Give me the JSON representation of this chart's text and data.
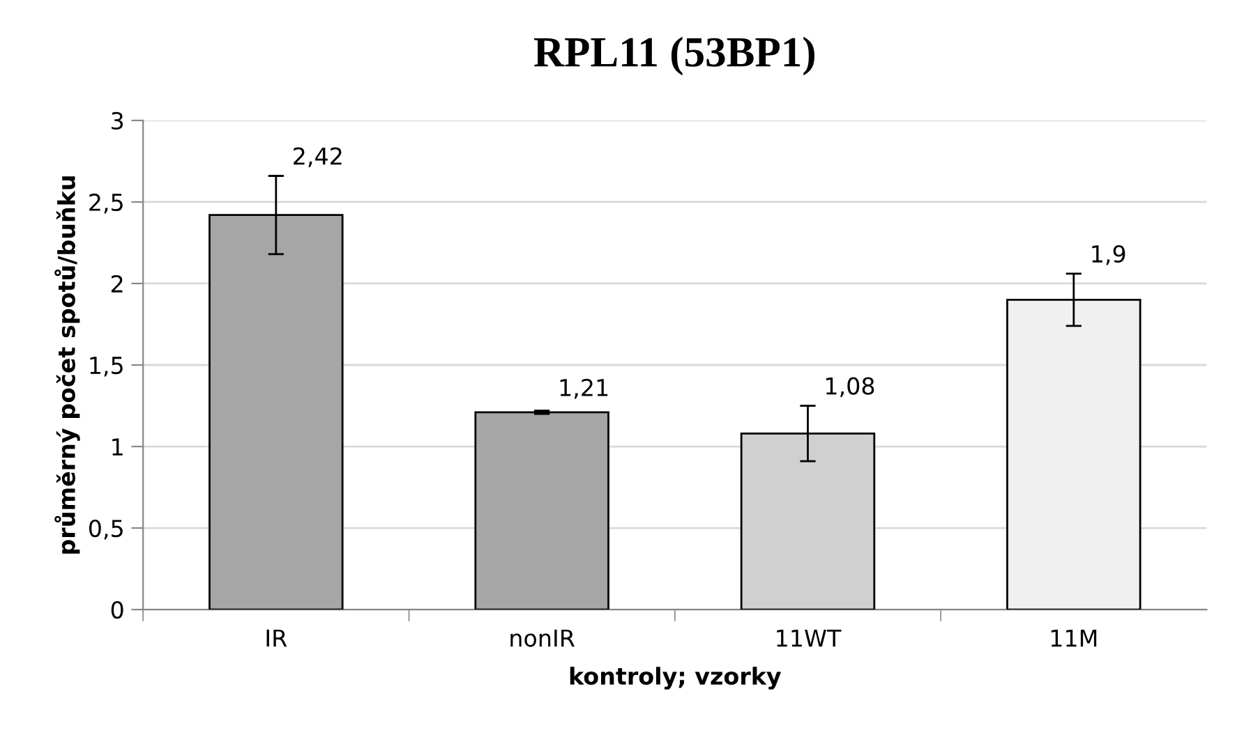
{
  "chart_data": {
    "type": "bar",
    "title": "RPL11 (53BP1)",
    "xlabel": "kontroly; vzorky",
    "ylabel": "průměrný počet spotů/buňku",
    "categories": [
      "IR",
      "nonIR",
      "11WT",
      "11M"
    ],
    "values": [
      2.42,
      1.21,
      1.08,
      1.9
    ],
    "value_labels": [
      "2,42",
      "1,21",
      "1,08",
      "1,9"
    ],
    "errors": [
      0.24,
      0.01,
      0.17,
      0.16
    ],
    "colors": [
      "#a6a6a6",
      "#a6a6a6",
      "#d0d0d0",
      "#f0f0f0"
    ],
    "ylim": [
      0,
      3
    ],
    "yticks": [
      0,
      {
        "value": 0.5,
        "label": "0,5"
      },
      1,
      {
        "value": 1.5,
        "label": "1,5"
      },
      2,
      {
        "value": 2.5,
        "label": "2,5"
      },
      3
    ],
    "grid": "y"
  }
}
